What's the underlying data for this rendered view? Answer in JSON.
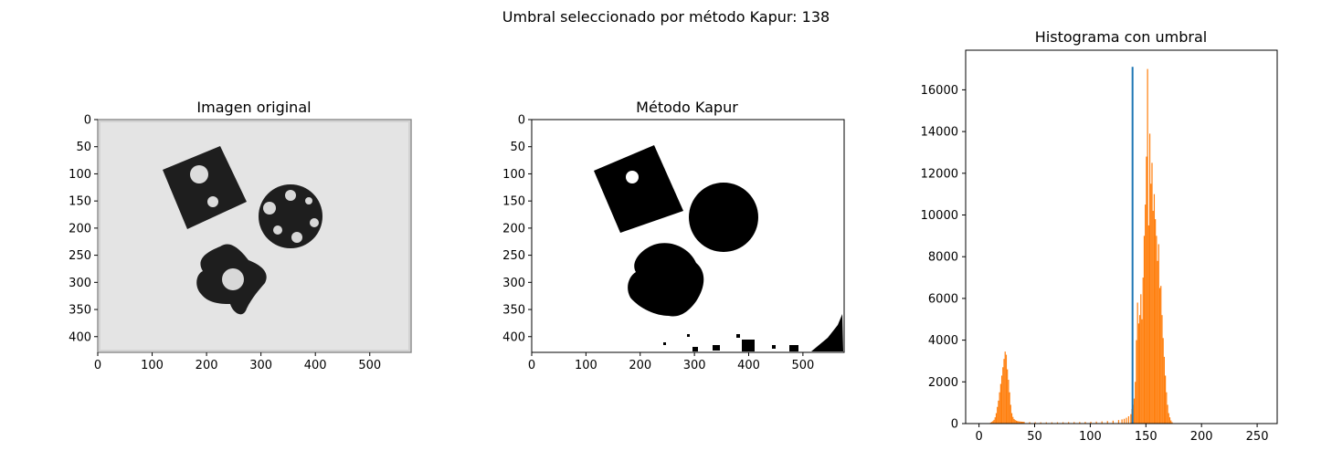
{
  "figure": {
    "suptitle": "Umbral seleccionado por método Kapur: 138"
  },
  "panels": {
    "original": {
      "title": "Imagen original",
      "xticks": [
        "0",
        "100",
        "200",
        "300",
        "400",
        "500"
      ],
      "yticks": [
        "0",
        "50",
        "100",
        "150",
        "200",
        "250",
        "300",
        "350",
        "400"
      ]
    },
    "kapur": {
      "title": "Método Kapur",
      "xticks": [
        "0",
        "100",
        "200",
        "300",
        "400",
        "500"
      ],
      "yticks": [
        "0",
        "50",
        "100",
        "150",
        "200",
        "250",
        "300",
        "350",
        "400"
      ]
    }
  },
  "chart_data": {
    "type": "bar",
    "title": "Histograma con umbral",
    "xlabel": "",
    "ylabel": "",
    "xlim": [
      -12,
      268
    ],
    "ylim": [
      0,
      17900
    ],
    "xticks": [
      0,
      50,
      100,
      150,
      200,
      250
    ],
    "yticks": [
      0,
      2000,
      4000,
      6000,
      8000,
      10000,
      12000,
      14000,
      16000
    ],
    "threshold": 138,
    "threshold_line_top": 17100,
    "colors": {
      "bars": "#ff7f0e",
      "threshold": "#1f77b4"
    },
    "bins": [
      [
        10,
        50
      ],
      [
        11,
        80
      ],
      [
        12,
        120
      ],
      [
        13,
        180
      ],
      [
        14,
        300
      ],
      [
        15,
        500
      ],
      [
        16,
        800
      ],
      [
        17,
        1100
      ],
      [
        18,
        1500
      ],
      [
        19,
        1900
      ],
      [
        20,
        2300
      ],
      [
        21,
        2700
      ],
      [
        22,
        3100
      ],
      [
        23,
        3450
      ],
      [
        24,
        3300
      ],
      [
        25,
        2600
      ],
      [
        26,
        2100
      ],
      [
        27,
        1500
      ],
      [
        28,
        900
      ],
      [
        29,
        500
      ],
      [
        30,
        320
      ],
      [
        31,
        220
      ],
      [
        32,
        170
      ],
      [
        33,
        140
      ],
      [
        34,
        120
      ],
      [
        35,
        110
      ],
      [
        36,
        100
      ],
      [
        37,
        95
      ],
      [
        38,
        90
      ],
      [
        39,
        88
      ],
      [
        40,
        85
      ],
      [
        45,
        70
      ],
      [
        50,
        65
      ],
      [
        55,
        60
      ],
      [
        60,
        60
      ],
      [
        65,
        60
      ],
      [
        70,
        62
      ],
      [
        75,
        65
      ],
      [
        80,
        70
      ],
      [
        85,
        72
      ],
      [
        90,
        75
      ],
      [
        95,
        80
      ],
      [
        100,
        85
      ],
      [
        105,
        95
      ],
      [
        110,
        105
      ],
      [
        115,
        120
      ],
      [
        120,
        140
      ],
      [
        125,
        170
      ],
      [
        128,
        200
      ],
      [
        130,
        230
      ],
      [
        132,
        280
      ],
      [
        134,
        350
      ],
      [
        136,
        450
      ],
      [
        137,
        700
      ],
      [
        138,
        900
      ],
      [
        139,
        1200
      ],
      [
        140,
        2000
      ],
      [
        141,
        4000
      ],
      [
        142,
        5800
      ],
      [
        143,
        4800
      ],
      [
        144,
        5200
      ],
      [
        145,
        6200
      ],
      [
        146,
        5000
      ],
      [
        147,
        7000
      ],
      [
        148,
        9000
      ],
      [
        149,
        10500
      ],
      [
        150,
        12800
      ],
      [
        151,
        17000
      ],
      [
        152,
        9500
      ],
      [
        153,
        13900
      ],
      [
        154,
        11500
      ],
      [
        155,
        12500
      ],
      [
        156,
        10200
      ],
      [
        157,
        11000
      ],
      [
        158,
        9800
      ],
      [
        159,
        9000
      ],
      [
        160,
        7800
      ],
      [
        161,
        8600
      ],
      [
        162,
        6500
      ],
      [
        163,
        6600
      ],
      [
        164,
        5200
      ],
      [
        165,
        4100
      ],
      [
        166,
        3200
      ],
      [
        167,
        2300
      ],
      [
        168,
        1500
      ],
      [
        169,
        900
      ],
      [
        170,
        500
      ],
      [
        171,
        300
      ],
      [
        172,
        150
      ],
      [
        173,
        70
      ]
    ]
  }
}
